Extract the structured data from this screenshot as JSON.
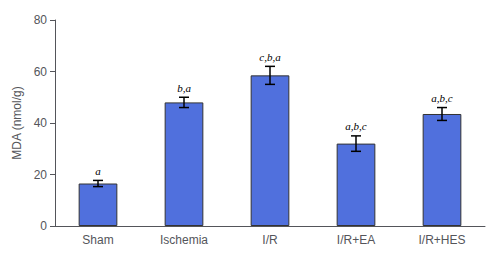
{
  "chart_data": {
    "type": "bar",
    "categories": [
      "Sham",
      "Ischemia",
      "I/R",
      "I/R+EA",
      "I/R+HES"
    ],
    "values": [
      16.5,
      48.0,
      58.5,
      32.0,
      43.5
    ],
    "errors": [
      1.2,
      2.0,
      3.5,
      3.0,
      2.5
    ],
    "annotations": [
      "a",
      "b,a",
      "c,b,a",
      "a,b,c",
      "a,b,c"
    ],
    "ylabel": "MDA (nmol/g)",
    "ylim": [
      0,
      80
    ],
    "yticks": [
      0,
      20,
      40,
      60,
      80
    ],
    "grid": false
  }
}
